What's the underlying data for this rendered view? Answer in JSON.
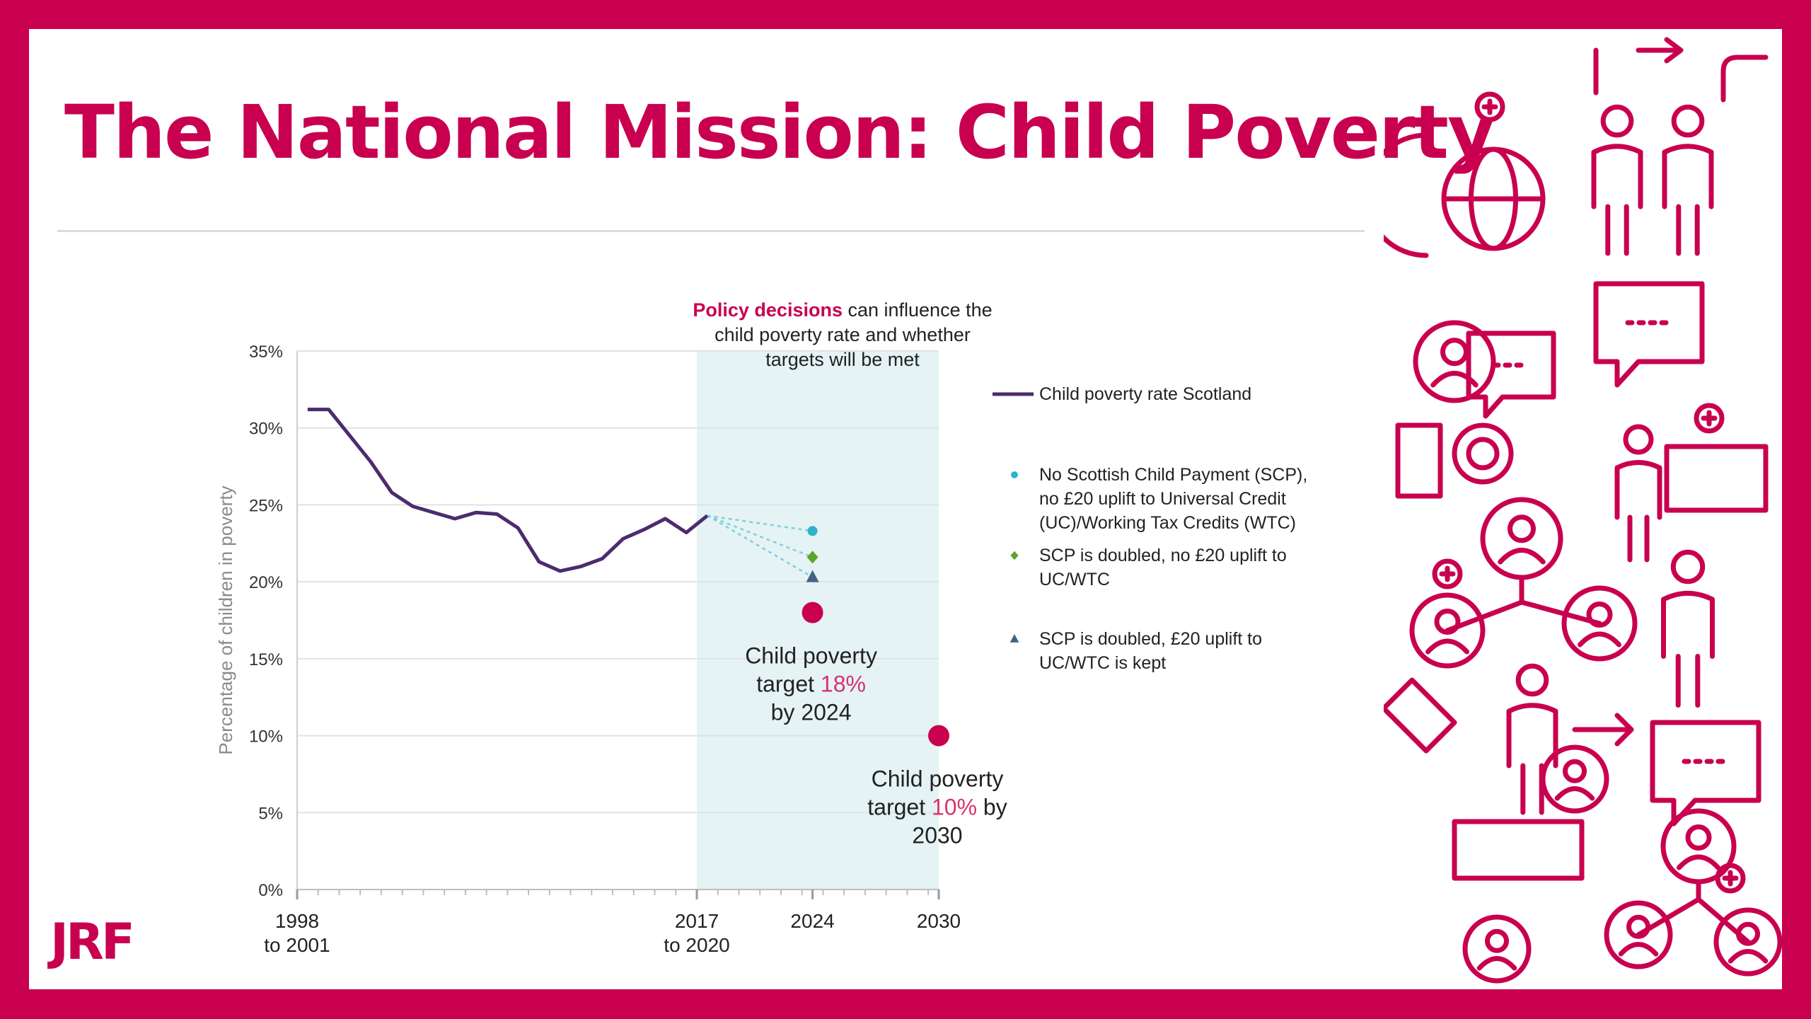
{
  "slide": {
    "title": "The National Mission: Child Poverty",
    "logo": "JRF",
    "pattern_icon": "people-network-icon-pattern",
    "accent_color": "#c8004f"
  },
  "chart_data": {
    "type": "line",
    "title": "",
    "ylabel": "Percentage of children in poverty",
    "xlabel": "",
    "ylim": [
      0,
      35
    ],
    "yticks": [
      0,
      5,
      10,
      15,
      20,
      25,
      30,
      35
    ],
    "ytick_labels": [
      "0%",
      "5%",
      "10%",
      "15%",
      "20%",
      "25%",
      "30%",
      "35%"
    ],
    "xlim": [
      1999.5,
      2030
    ],
    "xtick_labels": [
      {
        "x": 1999.5,
        "lines": [
          "1998",
          "to 2001"
        ]
      },
      {
        "x": 2018.5,
        "lines": [
          "2017",
          "to 2020"
        ]
      },
      {
        "x": 2024,
        "lines": [
          "2024"
        ]
      },
      {
        "x": 2030,
        "lines": [
          "2030"
        ]
      }
    ],
    "minor_ticks": [
      1999.5,
      2000.5,
      2001.5,
      2002.5,
      2003.5,
      2004.5,
      2005.5,
      2006.5,
      2007.5,
      2008.5,
      2009.5,
      2010.5,
      2011.5,
      2012.5,
      2013.5,
      2014.5,
      2015.5,
      2016.5,
      2017.5,
      2018.5,
      2019.5,
      2020.5,
      2021.5,
      2022.5,
      2023.5,
      2024.5,
      2025.5,
      2026.5,
      2027.5,
      2028.5,
      2029.5
    ],
    "grid": true,
    "shaded_region": {
      "x0": 2018.5,
      "x1": 2030,
      "color": "#e5f3f5"
    },
    "annotation": {
      "highlight": "Policy decisions",
      "rest": "can influence the",
      "line2": "child poverty rate and whether",
      "line3": "targets will be met"
    },
    "series": [
      {
        "name": "Child poverty rate Scotland",
        "color": "#4b2c6e",
        "x": [
          2000,
          2001,
          2002,
          2003,
          2004,
          2005,
          2006,
          2007,
          2008,
          2009,
          2010,
          2011,
          2012,
          2013,
          2014,
          2015,
          2016,
          2017,
          2018,
          2019
        ],
        "values": [
          31.2,
          31.2,
          29.5,
          27.8,
          25.8,
          24.9,
          24.5,
          24.1,
          24.5,
          24.4,
          23.5,
          21.3,
          20.7,
          21.0,
          21.5,
          22.8,
          23.4,
          24.1,
          23.2,
          24.3
        ]
      }
    ],
    "projections": [
      {
        "name": "No Scottish Child Payment (SCP), no £20 uplift to Universal Credit (UC)/Working Tax Credits (WTC)",
        "legend_lines": [
          "No Scottish Child Payment (SCP),",
          "no £20 uplift to Universal Credit",
          "(UC)/Working Tax Credits (WTC)"
        ],
        "x": 2024,
        "value": 23.3,
        "marker": "circle",
        "color": "#2fb3c9"
      },
      {
        "name": "SCP is doubled, no £20 uplift to UC/WTC",
        "legend_lines": [
          "SCP is doubled, no £20 uplift to",
          "UC/WTC"
        ],
        "x": 2024,
        "value": 21.6,
        "marker": "diamond",
        "color": "#5ca52a"
      },
      {
        "name": "SCP is doubled, £20 uplift to UC/WTC is kept",
        "legend_lines": [
          "SCP is doubled, £20 uplift to",
          "UC/WTC is kept"
        ],
        "x": 2024,
        "value": 20.3,
        "marker": "triangle",
        "color": "#3f6580"
      }
    ],
    "projection_origin": {
      "x": 2019,
      "value": 24.3
    },
    "targets": [
      {
        "x": 2024,
        "value": 18,
        "color": "#c8004f",
        "label_before": [
          "Child poverty",
          "target "
        ],
        "label_value": "18%",
        "label_after": [
          "",
          "by 2024"
        ]
      },
      {
        "x": 2030,
        "value": 10,
        "color": "#c8004f",
        "label_before": [
          "Child poverty",
          "target "
        ],
        "label_value": "10%",
        "label_after": [
          " by",
          "2030"
        ]
      }
    ],
    "legend_position": "right"
  }
}
